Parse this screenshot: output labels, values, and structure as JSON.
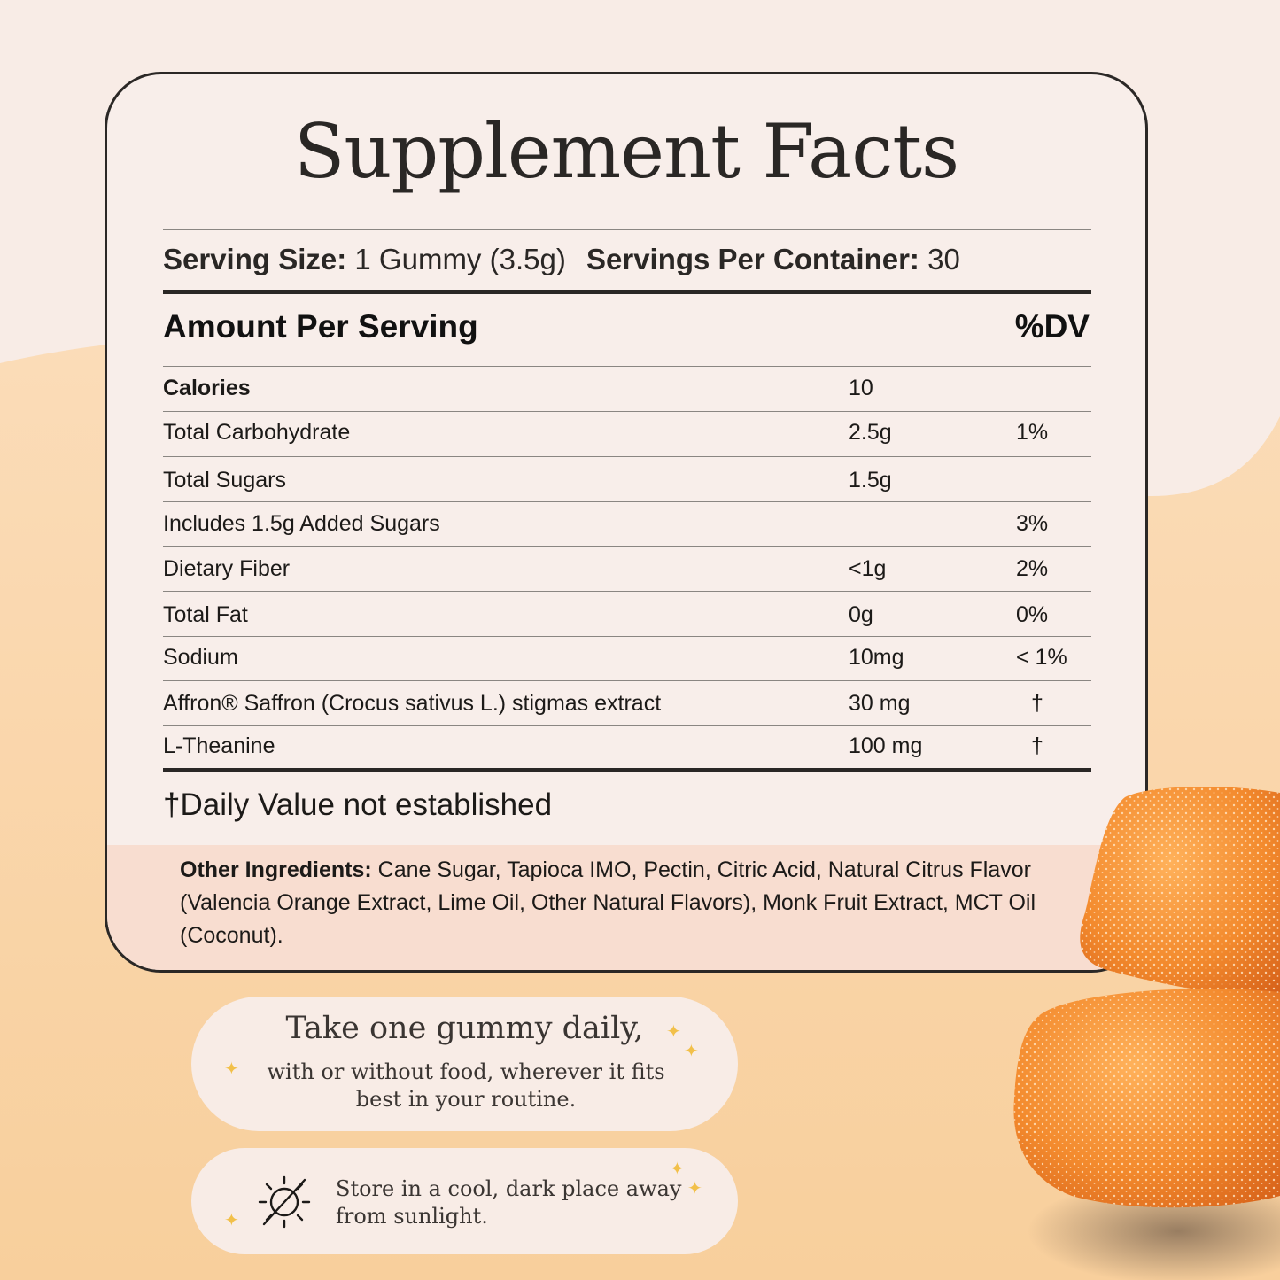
{
  "title": "Supplement Facts",
  "serving": {
    "size_label": "Serving Size:",
    "size_value": "1 Gummy (3.5g)",
    "per_container_label": "Servings Per Container:",
    "per_container_value": "30"
  },
  "header": {
    "amount_label": "Amount Per Serving",
    "dv_label": "%DV"
  },
  "rows": [
    {
      "name": "Calories",
      "amount": "10",
      "dv": ""
    },
    {
      "name": "Total Carbohydrate",
      "amount": "2.5g",
      "dv": "1%"
    },
    {
      "name": "Total Sugars",
      "amount": "1.5g",
      "dv": ""
    },
    {
      "name": "Includes 1.5g Added Sugars",
      "amount": "",
      "dv": "3%"
    },
    {
      "name": "Dietary Fiber",
      "amount": "<1g",
      "dv": "2%"
    },
    {
      "name": "Total Fat",
      "amount": "0g",
      "dv": "0%"
    },
    {
      "name": "Sodium",
      "amount": "10mg",
      "dv": "< 1%"
    },
    {
      "name": "Affron® Saffron (Crocus sativus L.) stigmas extract",
      "amount": "30 mg",
      "dv": "†"
    },
    {
      "name": "L-Theanine",
      "amount": "100 mg",
      "dv": "†"
    }
  ],
  "footnote": {
    "symbol": "†",
    "text": "Daily Value not established"
  },
  "ingredients": {
    "label": "Other Ingredients:",
    "text": "Cane Sugar, Tapioca IMO, Pectin, Citric Acid, Natural Citrus Flavor (Valencia Orange Extract, Lime Oil, Other Natural Flavors), Monk Fruit Extract, MCT Oil (Coconut)."
  },
  "directions": {
    "title": "Take one gummy daily,",
    "text": "with or without food, wherever it fits best in your routine."
  },
  "storage": {
    "text": "Store in a cool, dark place away from sunlight.",
    "icon": "no-sun-icon"
  },
  "colors": {
    "background": "#f8ece6",
    "wave": "#f9d6ad",
    "card": "#f8eeea",
    "ingredients_band": "#f8ddd0",
    "sparkle": "#f2c04a",
    "gummy": "#f08a2c"
  }
}
